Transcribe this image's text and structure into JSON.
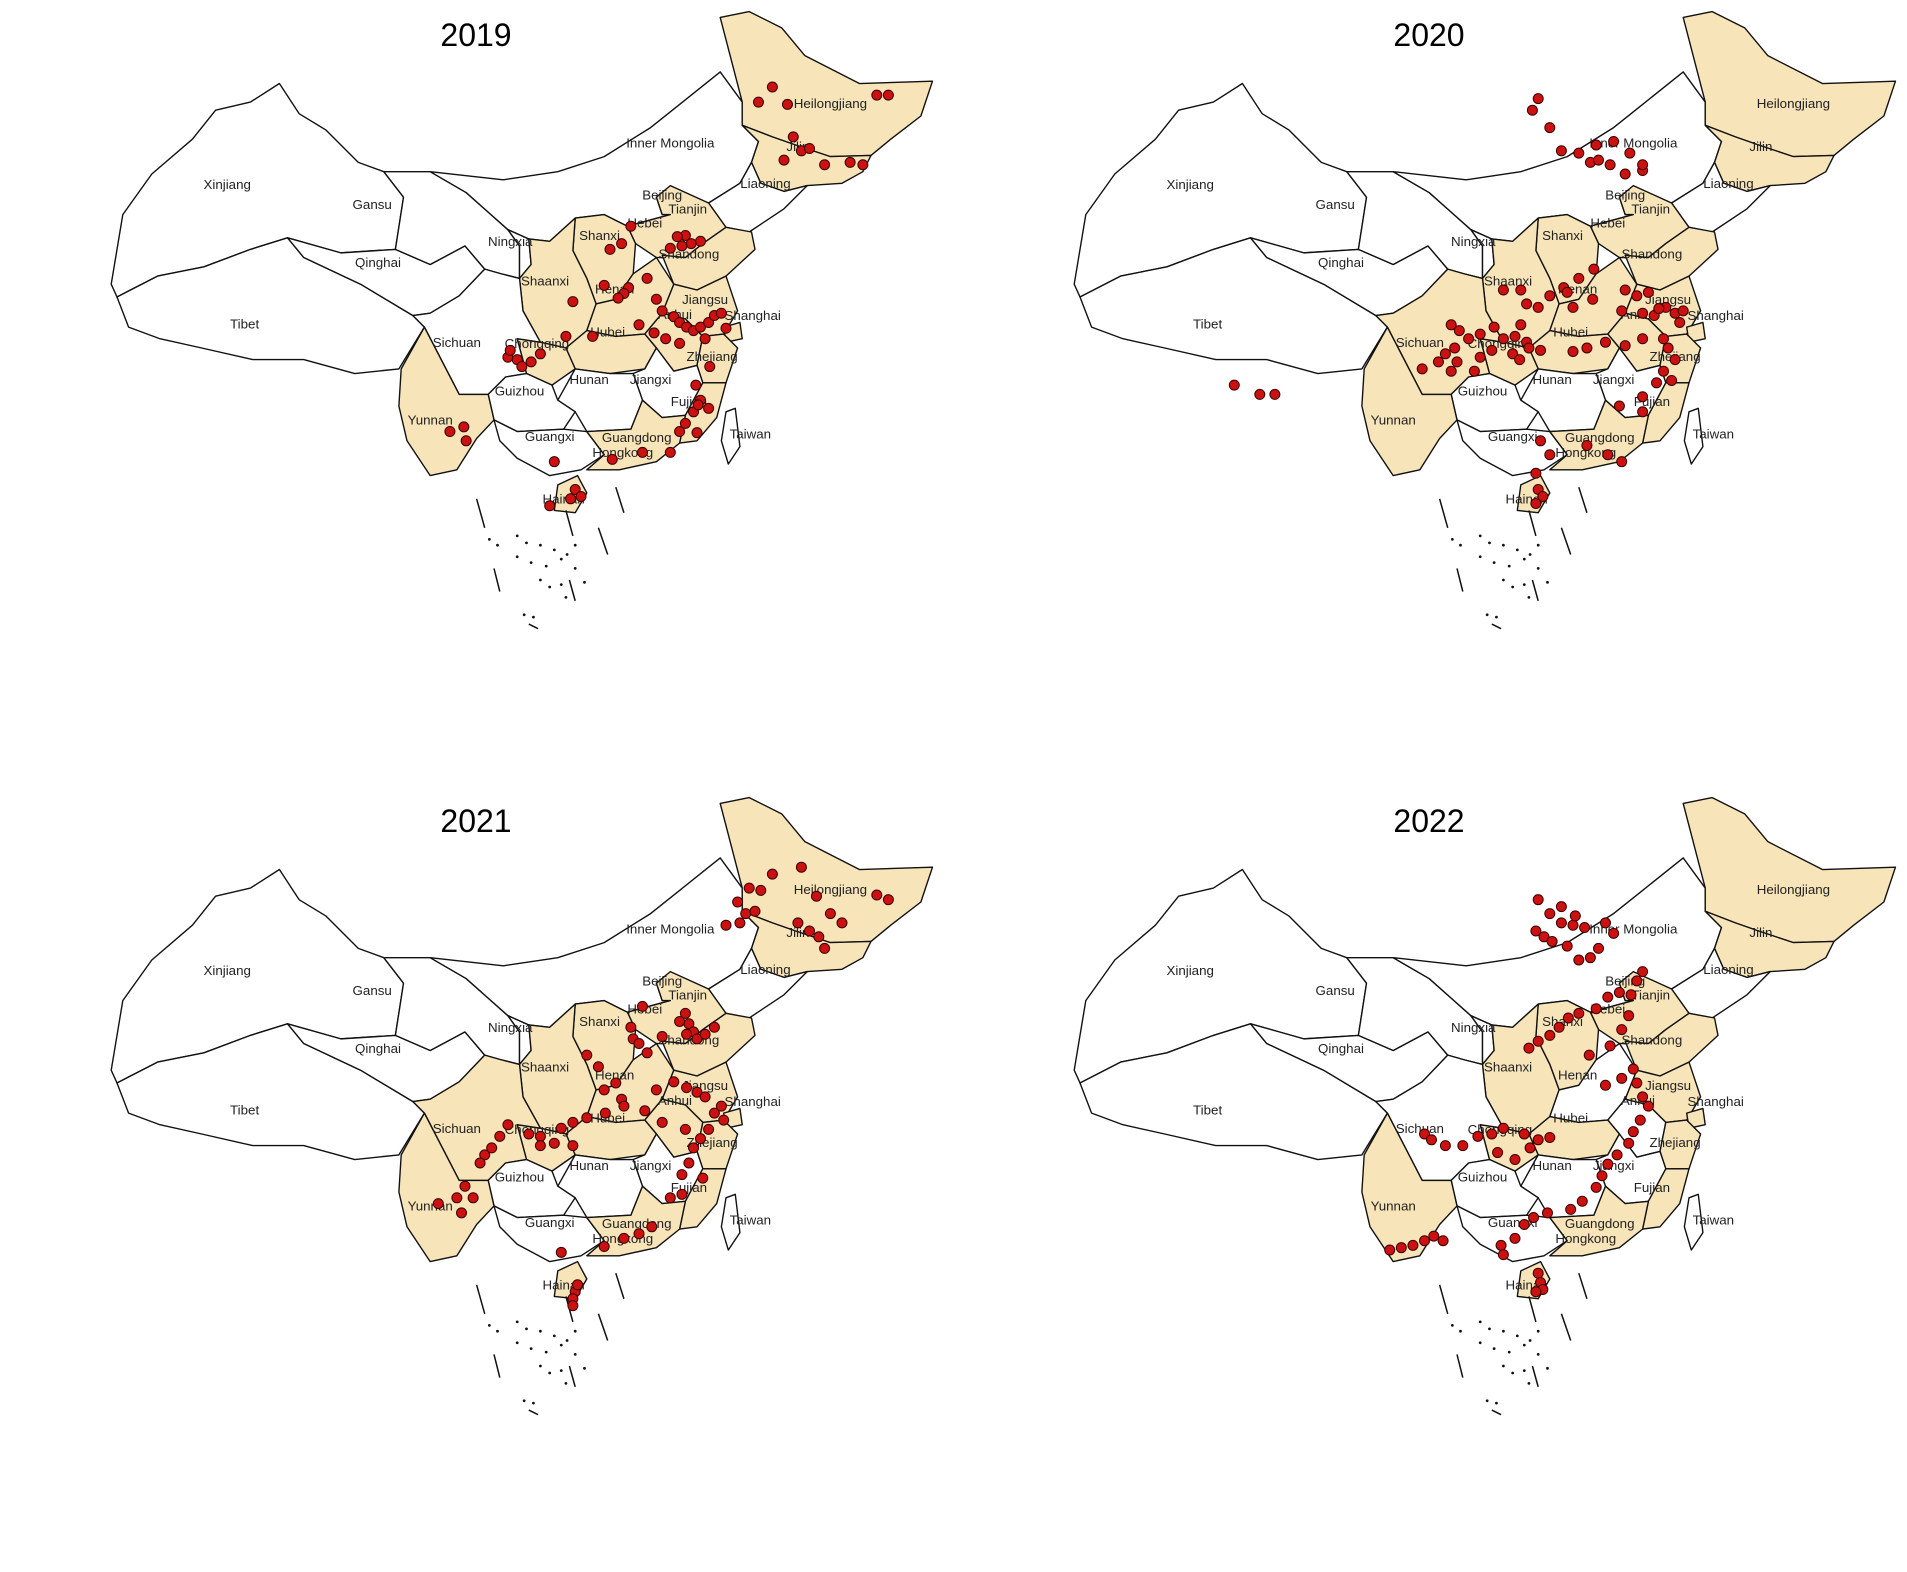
{
  "colors": {
    "highlight_fill": "#f7e4b8",
    "base_fill": "#ffffff",
    "border": "#111111",
    "point": "#cc1111"
  },
  "panels": [
    {
      "year": "2019",
      "highlighted": [
        "heilongjiang",
        "jilin",
        "beijing",
        "tianjin",
        "hebei",
        "shanxi",
        "shandong",
        "shaanxi",
        "henan",
        "hubei",
        "chongqing",
        "anhui",
        "jiangsu",
        "shanghai",
        "zhejiang",
        "fujian",
        "guangdong",
        "yunnan",
        "hainan"
      ],
      "labels": {
        "heilongjiang": "Heilongjiang",
        "jilin": "Jilin",
        "liaoning": "Liaoning",
        "inner_mongolia": "Inner Mongolia",
        "xinjiang": "Xinjiang",
        "gansu": "Gansu",
        "qinghai": "Qinghai",
        "tibet": "Tibet",
        "sichuan": "Sichuan",
        "yunnan": "Yunnan",
        "guizhou": "Guizhou",
        "guangxi": "Guangxi",
        "hunan": "Hunan",
        "jiangxi": "Jiangxi",
        "ningxia": "Ningxia",
        "shaanxi": "Shaanxi",
        "shanxi": "Shanxi",
        "hebei": "Hebei",
        "beijing": "Beijing",
        "tianjin": "Tianjin",
        "shandong": "Shandong",
        "henan": "Henan",
        "hubei": "Hubei",
        "chongqing": "Chongqing",
        "anhui": "Anhui",
        "jiangsu": "Jiangsu",
        "shanghai": "Shanghai",
        "zhejiang": "Zhejiang",
        "fujian": "Fujian",
        "guangdong": "Guangdong",
        "hongkong": "Hongkong",
        "taiwan": "Taiwan",
        "hainan": "Hainan"
      }
    },
    {
      "year": "2020",
      "highlighted": [
        "heilongjiang",
        "jilin",
        "beijing",
        "tianjin",
        "hebei",
        "shanxi",
        "shandong",
        "shaanxi",
        "henan",
        "hubei",
        "chongqing",
        "sichuan",
        "anhui",
        "jiangsu",
        "shanghai",
        "zhejiang",
        "fujian",
        "guangdong",
        "yunnan",
        "hainan"
      ],
      "labels": {
        "heilongjiang": "Heilongjiang",
        "jilin": "Jilin",
        "liaoning": "Liaoning",
        "inner_mongolia": "Inner Mongolia",
        "xinjiang": "Xinjiang",
        "gansu": "Gansu",
        "qinghai": "Qinghai",
        "tibet": "Tibet",
        "sichuan": "Sichuan",
        "yunnan": "Yunnan",
        "guizhou": "Guizhou",
        "guangxi": "Guangxi",
        "hunan": "Hunan",
        "jiangxi": "Jiangxi",
        "ningxia": "Ningxia",
        "shaanxi": "Shaanxi",
        "shanxi": "Shanxi",
        "hebei": "Hebei",
        "beijing": "Beijing",
        "tianjin": "Tianjin",
        "shandong": "Shandong",
        "henan": "Henan",
        "hubei": "Hubei",
        "chongqing": "Chongqing",
        "anhui": "Anhui",
        "jiangsu": "Jiangsu",
        "shanghai": "Shanghai",
        "zhejiang": "Zhejiang",
        "fujian": "Fujian",
        "guangdong": "Guangdong",
        "hongkong": "Hongkong",
        "taiwan": "Taiwan",
        "hainan": "Hainan"
      }
    },
    {
      "year": "2021",
      "highlighted": [
        "heilongjiang",
        "jilin",
        "beijing",
        "tianjin",
        "hebei",
        "shanxi",
        "shandong",
        "shaanxi",
        "henan",
        "hubei",
        "chongqing",
        "sichuan",
        "anhui",
        "jiangsu",
        "shanghai",
        "zhejiang",
        "fujian",
        "guangdong",
        "yunnan",
        "hainan"
      ],
      "labels": {
        "heilongjiang": "Heilongjiang",
        "jilin": "Jilin",
        "liaoning": "Liaoning",
        "inner_mongolia": "Inner Mongolia",
        "xinjiang": "Xinjiang",
        "gansu": "Gansu",
        "qinghai": "Qinghai",
        "tibet": "Tibet",
        "sichuan": "Sichuan",
        "yunnan": "Yunnan",
        "guizhou": "Guizhou",
        "guangxi": "Guangxi",
        "hunan": "Hunan",
        "jiangxi": "Jiangxi",
        "ningxia": "Ningxia",
        "shaanxi": "Shaanxi",
        "shanxi": "Shanxi",
        "hebei": "Hebei",
        "beijing": "Beijing",
        "tianjin": "Tianjin",
        "shandong": "Shandong",
        "henan": "Henan",
        "hubei": "Hubei",
        "chongqing": "Chongqing",
        "anhui": "Anhui",
        "jiangsu": "Jiangsu",
        "shanghai": "Shanghai",
        "zhejiang": "Zhejiang",
        "fujian": "Fujian",
        "guangdong": "Guangdong",
        "hongkong": "Hongkong",
        "taiwan": "Taiwan",
        "hainan": "Hainan"
      }
    },
    {
      "year": "2022",
      "highlighted": [
        "heilongjiang",
        "jilin",
        "beijing",
        "tianjin",
        "hebei",
        "shanxi",
        "shandong",
        "shaanxi",
        "hubei",
        "chongqing",
        "jiangsu",
        "shanghai",
        "zhejiang",
        "fujian",
        "guangdong",
        "yunnan",
        "hainan"
      ],
      "labels": {
        "heilongjiang": "Heilongjiang",
        "jilin": "Jilin",
        "liaoning": "Liaoning",
        "inner_mongolia": "Inner Mongolia",
        "xinjiang": "Xinjiang",
        "gansu": "Gansu",
        "qinghai": "Qinghai",
        "tibet": "Tibet",
        "sichuan": "Sichuan",
        "yunnan": "Yunnan",
        "guizhou": "Guizhou",
        "guangxi": "Guangxi",
        "hunan": "Hunan",
        "jiangxi": "Jiangxi",
        "ningxia": "Ningxia",
        "shaanxi": "Shaanxi",
        "shanxi": "Shanxi",
        "hebei": "Hebei",
        "beijing": "Beijing",
        "tianjin": "Tianjin",
        "shandong": "Shandong",
        "henan": "Henan",
        "hubei": "Hubei",
        "chongqing": "Chongqing",
        "anhui": "Anhui",
        "jiangsu": "Jiangsu",
        "shanghai": "Shanghai",
        "zhejiang": "Zhejiang",
        "fujian": "Fujian",
        "guangdong": "Guangdong",
        "hongkong": "Hongkong",
        "taiwan": "Taiwan",
        "hainan": "Hainan"
      }
    }
  ]
}
